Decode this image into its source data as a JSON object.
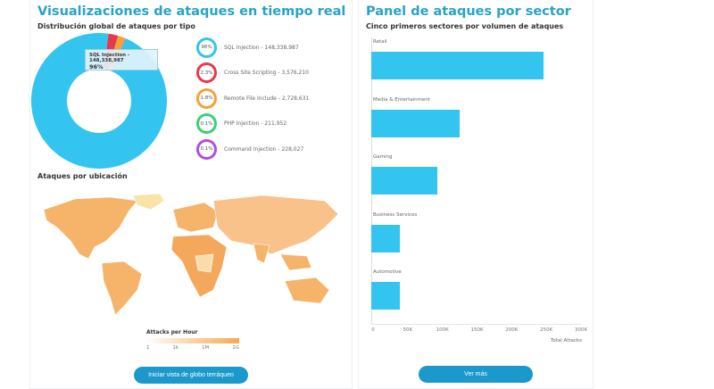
{
  "left": {
    "title": "Visualizaciones de ataques en tiempo real",
    "subtitle": "Distribución global de ataques por tipo",
    "tooltip": {
      "label": "SQL Injection - 148,338,987",
      "pct": "96%"
    },
    "legend": [
      {
        "pct": "96%",
        "label": "SQL Injection - 148,338,987",
        "color": "#33c4ef",
        "share": 96
      },
      {
        "pct": "2.3%",
        "label": "Cross Site Scripting - 3,576,210",
        "color": "#e8384f",
        "share": 2.3
      },
      {
        "pct": "1.8%",
        "label": "Remote File Include - 2,728,631",
        "color": "#f5a13a",
        "share": 1.8
      },
      {
        "pct": "0.1%",
        "label": "PHP Injection - 211,952",
        "color": "#3ccf7a",
        "share": 0.1
      },
      {
        "pct": "0.1%",
        "label": "Command Injection - 228,027",
        "color": "#b14ee0",
        "share": 0.1
      }
    ],
    "map_title": "Ataques por ubicación",
    "map_legend": {
      "title": "Attacks per Hour",
      "ticks": [
        "1",
        "1k",
        "1M",
        "1G"
      ]
    },
    "button": "Iniciar vista de globo terráqueo"
  },
  "right": {
    "title": "Panel de ataques por sector",
    "subtitle": "Cinco primeros sectores por volumen de ataques",
    "button": "Ver más"
  },
  "chart_data": {
    "type": "bar",
    "orientation": "horizontal",
    "categories": [
      "Retail",
      "Media & Entertainment",
      "Gaming",
      "Business Services",
      "Automotive"
    ],
    "values": [
      246000,
      126000,
      95000,
      41000,
      41000
    ],
    "xlabel": "Total Attacks",
    "xlim": [
      0,
      300000
    ],
    "ticks": [
      "0",
      "50K",
      "100K",
      "150K",
      "200K",
      "250K",
      "300K"
    ],
    "color": "#33c4ef"
  }
}
